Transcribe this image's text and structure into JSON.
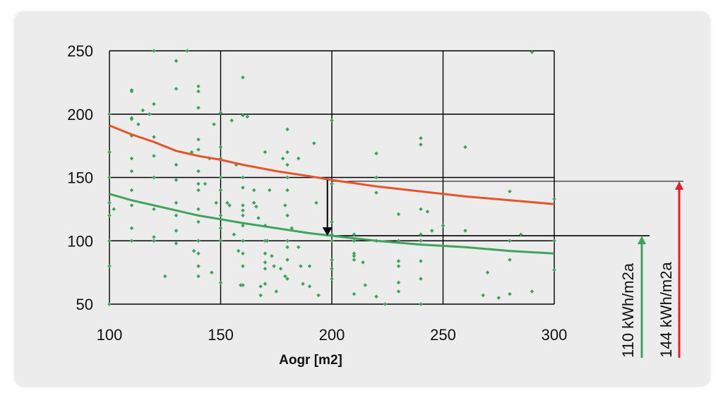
{
  "chart_data": {
    "type": "scatter",
    "title": "",
    "xlabel": "Aogr [m2]",
    "ylabel": "",
    "xlim": [
      100,
      300
    ],
    "ylim": [
      50,
      250
    ],
    "x_ticks": [
      100,
      150,
      200,
      250,
      300
    ],
    "y_ticks": [
      50,
      100,
      150,
      200,
      250
    ],
    "grid": true,
    "colors": {
      "points": "#3fa35c",
      "upper_curve": "#e8542a",
      "lower_curve": "#3fa35c",
      "red_arrow": "#e0202a",
      "green_arrow": "#3fa35c",
      "marker": "#000000"
    },
    "points": [
      [
        100,
        200
      ],
      [
        100,
        170
      ],
      [
        100,
        150
      ],
      [
        100,
        130
      ],
      [
        100,
        120
      ],
      [
        100,
        100
      ],
      [
        100,
        80
      ],
      [
        100,
        50
      ],
      [
        102,
        125
      ],
      [
        110,
        219
      ],
      [
        110,
        218
      ],
      [
        110,
        197
      ],
      [
        110,
        196
      ],
      [
        110,
        183
      ],
      [
        110,
        165
      ],
      [
        110,
        155
      ],
      [
        110,
        140
      ],
      [
        110,
        128
      ],
      [
        110,
        110
      ],
      [
        110,
        100
      ],
      [
        113,
        192
      ],
      [
        115,
        203
      ],
      [
        118,
        200
      ],
      [
        120,
        250
      ],
      [
        120,
        208
      ],
      [
        120,
        182
      ],
      [
        120,
        167
      ],
      [
        120,
        150
      ],
      [
        120,
        125
      ],
      [
        120,
        103
      ],
      [
        120,
        100
      ],
      [
        125,
        72
      ],
      [
        130,
        242
      ],
      [
        130,
        220
      ],
      [
        130,
        160
      ],
      [
        130,
        148
      ],
      [
        130,
        130
      ],
      [
        130,
        120
      ],
      [
        130,
        108
      ],
      [
        130,
        98
      ],
      [
        135,
        250
      ],
      [
        137,
        170
      ],
      [
        138,
        92
      ],
      [
        140,
        222
      ],
      [
        140,
        218
      ],
      [
        140,
        205
      ],
      [
        140,
        180
      ],
      [
        140,
        172
      ],
      [
        140,
        155
      ],
      [
        140,
        145
      ],
      [
        140,
        140
      ],
      [
        140,
        125
      ],
      [
        140,
        115
      ],
      [
        140,
        100
      ],
      [
        140,
        90
      ],
      [
        140,
        80
      ],
      [
        140,
        72
      ],
      [
        143,
        145
      ],
      [
        145,
        165
      ],
      [
        146,
        75
      ],
      [
        147,
        192
      ],
      [
        148,
        130
      ],
      [
        150,
        201
      ],
      [
        150,
        174
      ],
      [
        150,
        165
      ],
      [
        150,
        150
      ],
      [
        150,
        140
      ],
      [
        150,
        120
      ],
      [
        150,
        110
      ],
      [
        150,
        100
      ],
      [
        150,
        67
      ],
      [
        153,
        130
      ],
      [
        154,
        128
      ],
      [
        155,
        195
      ],
      [
        156,
        105
      ],
      [
        157,
        160
      ],
      [
        158,
        92
      ],
      [
        159,
        65
      ],
      [
        160,
        229
      ],
      [
        160,
        199
      ],
      [
        160,
        150
      ],
      [
        160,
        142
      ],
      [
        160,
        128
      ],
      [
        160,
        124
      ],
      [
        160,
        120
      ],
      [
        160,
        112
      ],
      [
        160,
        100
      ],
      [
        160,
        90
      ],
      [
        160,
        80
      ],
      [
        160,
        65
      ],
      [
        162,
        198
      ],
      [
        165,
        140
      ],
      [
        165,
        130
      ],
      [
        166,
        127
      ],
      [
        167,
        118
      ],
      [
        168,
        64
      ],
      [
        168,
        57
      ],
      [
        170,
        170
      ],
      [
        170,
        112
      ],
      [
        170,
        100
      ],
      [
        170,
        90
      ],
      [
        170,
        83
      ],
      [
        170,
        78
      ],
      [
        170,
        66
      ],
      [
        171,
        100
      ],
      [
        172,
        140
      ],
      [
        173,
        88
      ],
      [
        174,
        80
      ],
      [
        175,
        60
      ],
      [
        177,
        78
      ],
      [
        178,
        165
      ],
      [
        179,
        128
      ],
      [
        179,
        72
      ],
      [
        180,
        188
      ],
      [
        180,
        170
      ],
      [
        180,
        160
      ],
      [
        180,
        150
      ],
      [
        180,
        140
      ],
      [
        180,
        120
      ],
      [
        180,
        100
      ],
      [
        180,
        95
      ],
      [
        180,
        85
      ],
      [
        180,
        70
      ],
      [
        182,
        110
      ],
      [
        185,
        165
      ],
      [
        185,
        95
      ],
      [
        186,
        80
      ],
      [
        187,
        66
      ],
      [
        190,
        80
      ],
      [
        190,
        64
      ],
      [
        192,
        177
      ],
      [
        193,
        130
      ],
      [
        194,
        57
      ],
      [
        200,
        195
      ],
      [
        200,
        145
      ],
      [
        200,
        115
      ],
      [
        200,
        105
      ],
      [
        200,
        100
      ],
      [
        200,
        85
      ],
      [
        200,
        78
      ],
      [
        200,
        70
      ],
      [
        210,
        105
      ],
      [
        210,
        100
      ],
      [
        210,
        90
      ],
      [
        210,
        88
      ],
      [
        210,
        85
      ],
      [
        210,
        58
      ],
      [
        214,
        83
      ],
      [
        215,
        65
      ],
      [
        220,
        169
      ],
      [
        220,
        150
      ],
      [
        220,
        138
      ],
      [
        220,
        100
      ],
      [
        220,
        56
      ],
      [
        224,
        50
      ],
      [
        230,
        121
      ],
      [
        230,
        100
      ],
      [
        230,
        84
      ],
      [
        230,
        80
      ],
      [
        230,
        67
      ],
      [
        230,
        60
      ],
      [
        240,
        181
      ],
      [
        240,
        176
      ],
      [
        240,
        125
      ],
      [
        240,
        105
      ],
      [
        240,
        100
      ],
      [
        240,
        84
      ],
      [
        240,
        70
      ],
      [
        240,
        50
      ],
      [
        243,
        123
      ],
      [
        245,
        108
      ],
      [
        250,
        112
      ],
      [
        260,
        174
      ],
      [
        260,
        108
      ],
      [
        268,
        57
      ],
      [
        270,
        75
      ],
      [
        275,
        55
      ],
      [
        280,
        139
      ],
      [
        280,
        100
      ],
      [
        280,
        85
      ],
      [
        280,
        58
      ],
      [
        285,
        105
      ],
      [
        290,
        249
      ],
      [
        290,
        60
      ],
      [
        300,
        133
      ],
      [
        300,
        100
      ],
      [
        300,
        77
      ]
    ],
    "upper_curve": [
      [
        100,
        191
      ],
      [
        110,
        184
      ],
      [
        120,
        178
      ],
      [
        130,
        171
      ],
      [
        140,
        167
      ],
      [
        150,
        164
      ],
      [
        160,
        160
      ],
      [
        175,
        155
      ],
      [
        190,
        151
      ],
      [
        200,
        148
      ],
      [
        220,
        143
      ],
      [
        240,
        139
      ],
      [
        260,
        135
      ],
      [
        280,
        132
      ],
      [
        300,
        129
      ]
    ],
    "lower_curve": [
      [
        100,
        137
      ],
      [
        110,
        132
      ],
      [
        120,
        128
      ],
      [
        130,
        124
      ],
      [
        140,
        120
      ],
      [
        150,
        117
      ],
      [
        160,
        114
      ],
      [
        175,
        110
      ],
      [
        190,
        106
      ],
      [
        200,
        104
      ],
      [
        220,
        100
      ],
      [
        240,
        97
      ],
      [
        260,
        95
      ],
      [
        280,
        92
      ],
      [
        300,
        90
      ]
    ],
    "reference_lines": [
      {
        "kind": "upper",
        "y": 147
      },
      {
        "kind": "lower",
        "y": 104
      }
    ],
    "arrow_marker": {
      "x": 198,
      "from": 148,
      "to": 104
    },
    "annotations": [
      {
        "kind": "green",
        "label": "110 kWh/m2a"
      },
      {
        "kind": "red",
        "label": "144 kWh/m2a"
      }
    ]
  }
}
